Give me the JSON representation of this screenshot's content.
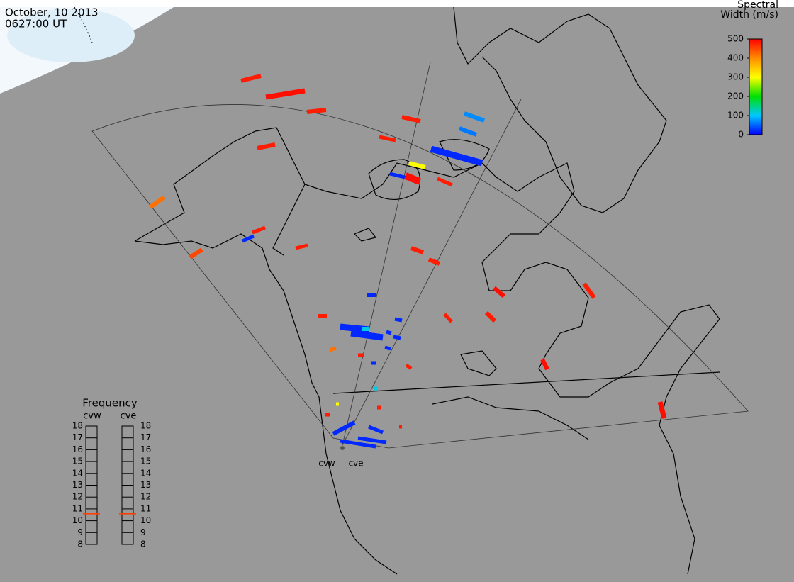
{
  "header": {
    "date": "October, 10 2013",
    "time": "0627:00 UT"
  },
  "colorbar": {
    "title": [
      "Spectral",
      "Width (m/s)"
    ],
    "lim": [
      0,
      500
    ],
    "ticks": [
      0,
      100,
      200,
      300,
      400,
      500
    ],
    "colors": [
      "#0000ff",
      "#00c8ff",
      "#00e000",
      "#ffff00",
      "#ff8c00",
      "#ff0000"
    ]
  },
  "frequency": {
    "title": "Frequency",
    "lim": [
      8,
      18
    ],
    "ticks": [
      8,
      9,
      10,
      11,
      12,
      13,
      14,
      15,
      16,
      17,
      18
    ],
    "radars": [
      {
        "name": "cvw",
        "value": 10.6
      },
      {
        "name": "cve",
        "value": 10.6
      }
    ],
    "marker_color": "#ff4000"
  },
  "sites": [
    "cvw",
    "cve"
  ],
  "echoes": [
    {
      "width": 480
    },
    {
      "width": 490
    },
    {
      "width": 480
    },
    {
      "width": 480
    },
    {
      "width": 420
    },
    {
      "width": 450
    },
    {
      "width": 20
    },
    {
      "width": 480
    },
    {
      "width": 480
    },
    {
      "width": 480
    },
    {
      "width": 70
    },
    {
      "width": 60
    },
    {
      "width": 480
    },
    {
      "width": 20
    },
    {
      "width": 300
    },
    {
      "width": 20
    },
    {
      "width": 490
    },
    {
      "width": 480
    },
    {
      "width": 480
    },
    {
      "width": 480
    },
    {
      "width": 490
    },
    {
      "width": 480
    },
    {
      "width": 480
    },
    {
      "width": 480
    },
    {
      "width": 20
    },
    {
      "width": 480
    },
    {
      "width": 20
    },
    {
      "width": 20
    },
    {
      "width": 110
    },
    {
      "width": 20
    },
    {
      "width": 20
    },
    {
      "width": 20
    },
    {
      "width": 20
    },
    {
      "width": 420
    },
    {
      "width": 480
    },
    {
      "width": 480
    },
    {
      "width": 490
    },
    {
      "width": 490
    },
    {
      "width": 20
    },
    {
      "width": 110
    },
    {
      "width": 480
    },
    {
      "width": 300
    },
    {
      "width": 20
    },
    {
      "width": 20
    },
    {
      "width": 20
    },
    {
      "width": 20
    },
    {
      "width": 480
    },
    {
      "width": 480
    }
  ]
}
